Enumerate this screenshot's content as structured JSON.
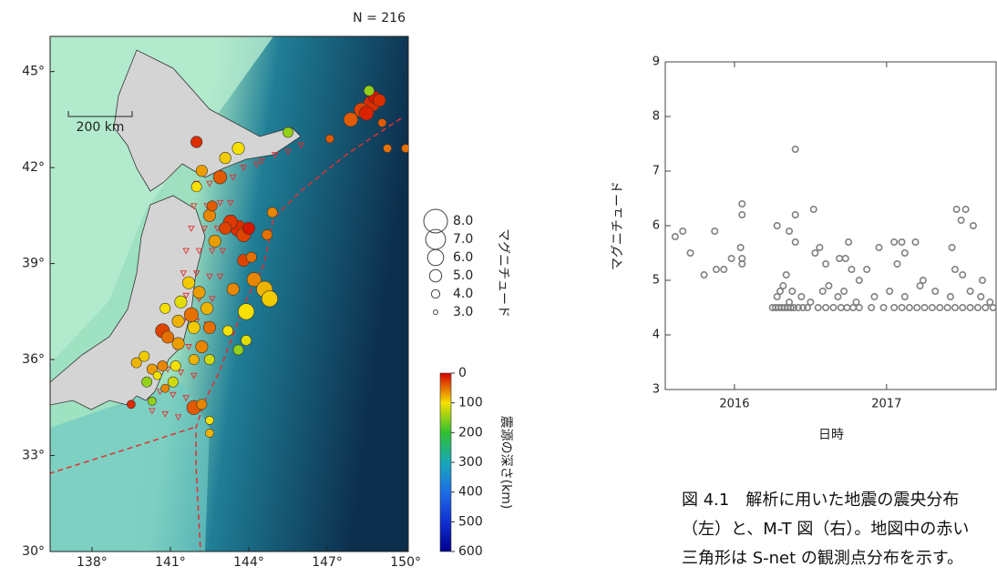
{
  "chart_data": [
    {
      "type": "map-scatter",
      "title": "N = 216",
      "scale_bar": "200 km",
      "xlim": [
        136.4,
        150.1
      ],
      "ylim": [
        30,
        46.1
      ],
      "xticks": [
        {
          "value": 138,
          "label": "138°"
        },
        {
          "value": 141,
          "label": "141°"
        },
        {
          "value": 144,
          "label": "144°"
        },
        {
          "value": 147,
          "label": "147°"
        },
        {
          "value": 150,
          "label": "150°"
        }
      ],
      "yticks": [
        {
          "value": 30,
          "label": "30°"
        },
        {
          "value": 33,
          "label": "33°"
        },
        {
          "value": 36,
          "label": "36°"
        },
        {
          "value": 39,
          "label": "39°"
        },
        {
          "value": 42,
          "label": "42°"
        },
        {
          "value": 45,
          "label": "45°"
        }
      ],
      "stations": {
        "color": "#e03030",
        "x": [
          142.0,
          142.5,
          143.0,
          143.4,
          141.9,
          142.4,
          142.9,
          143.3,
          141.8,
          142.3,
          142.8,
          143.2,
          141.6,
          142.1,
          142.6,
          143.0,
          141.5,
          142.0,
          142.5,
          142.9,
          141.6,
          142.1,
          142.6,
          141.5,
          142.0,
          142.4,
          141.2,
          141.7,
          142.2,
          140.9,
          141.4,
          141.9,
          140.6,
          141.1,
          141.6,
          140.3,
          140.8,
          141.3,
          144.5,
          145.0,
          145.5,
          146.0,
          143.8,
          144.3
        ],
        "y": [
          41.5,
          41.5,
          41.6,
          41.7,
          40.8,
          40.8,
          40.9,
          40.9,
          40.1,
          40.1,
          40.1,
          40.2,
          39.4,
          39.4,
          39.4,
          39.4,
          38.7,
          38.7,
          38.6,
          38.6,
          38.0,
          37.9,
          37.9,
          37.2,
          37.2,
          37.1,
          36.4,
          36.4,
          36.3,
          35.7,
          35.6,
          35.5,
          35.0,
          34.9,
          34.8,
          34.4,
          34.3,
          34.2,
          42.2,
          42.4,
          42.5,
          42.7,
          42.0,
          42.1
        ]
      },
      "events": {
        "x": [
          143.6,
          143.1,
          142.2,
          142.9,
          142.0,
          148.7,
          148.3,
          148.8,
          148.5,
          148.6,
          149.0,
          147.9,
          149.1,
          149.3,
          145.5,
          147.1,
          143.6,
          143.3,
          143.8,
          144.0,
          143.1,
          142.5,
          142.6,
          142.7,
          144.7,
          143.8,
          144.1,
          142.0,
          144.2,
          144.6,
          144.8,
          143.9,
          143.4,
          141.7,
          142.1,
          142.4,
          141.4,
          141.8,
          141.3,
          140.8,
          140.7,
          140.9,
          141.3,
          141.9,
          142.2,
          142.5,
          141.9,
          141.2,
          139.7,
          140.0,
          140.3,
          140.7,
          140.1,
          140.5,
          140.8,
          141.1,
          142.5,
          143.6,
          143.9,
          141.9,
          142.2,
          142.5,
          142.5,
          139.5,
          140.3,
          144.9,
          143.2,
          150.0
        ],
        "y": [
          42.6,
          42.3,
          41.9,
          41.7,
          42.8,
          44.0,
          43.8,
          44.2,
          43.7,
          44.4,
          44.1,
          43.5,
          43.4,
          42.6,
          43.1,
          42.9,
          40.1,
          40.3,
          39.9,
          40.1,
          40.1,
          40.5,
          40.8,
          39.7,
          39.9,
          39.1,
          39.2,
          41.4,
          38.5,
          38.2,
          37.9,
          37.5,
          38.2,
          38.4,
          38.1,
          37.6,
          37.8,
          37.4,
          37.2,
          37.6,
          36.9,
          36.7,
          36.5,
          37.0,
          36.4,
          37.0,
          36.0,
          35.8,
          35.9,
          36.1,
          35.7,
          35.8,
          35.3,
          35.5,
          35.1,
          35.3,
          36.0,
          36.3,
          36.6,
          34.5,
          34.6,
          34.1,
          33.7,
          34.6,
          34.7,
          40.6,
          36.9,
          42.6
        ],
        "sizes": [
          5.0,
          4.8,
          4.8,
          5.3,
          4.8,
          6.0,
          5.5,
          5.0,
          5.5,
          4.5,
          5.0,
          5.5,
          4.0,
          4.0,
          4.5,
          4.0,
          6.0,
          5.5,
          5.5,
          5.0,
          5.0,
          5.0,
          4.5,
          5.0,
          4.5,
          5.0,
          4.5,
          4.5,
          5.5,
          6.0,
          6.0,
          6.0,
          5.0,
          5.0,
          5.0,
          5.0,
          5.0,
          5.5,
          5.0,
          4.5,
          5.5,
          5.0,
          5.0,
          5.0,
          5.0,
          5.0,
          4.5,
          4.5,
          4.5,
          4.5,
          4.5,
          4.5,
          4.5,
          4.0,
          4.0,
          4.5,
          4.5,
          4.5,
          4.5,
          5.5,
          4.5,
          4.0,
          4.0,
          4.0,
          4.0,
          4.5,
          4.5,
          4.0
        ],
        "depths": [
          100,
          90,
          70,
          40,
          20,
          20,
          30,
          10,
          15,
          150,
          20,
          40,
          40,
          50,
          150,
          40,
          20,
          25,
          30,
          10,
          30,
          60,
          40,
          70,
          50,
          30,
          50,
          100,
          60,
          80,
          90,
          100,
          60,
          90,
          70,
          80,
          110,
          50,
          80,
          100,
          30,
          50,
          70,
          90,
          60,
          50,
          80,
          100,
          80,
          90,
          70,
          60,
          150,
          100,
          60,
          120,
          120,
          150,
          110,
          40,
          60,
          100,
          80,
          20,
          150,
          60,
          100,
          50
        ]
      },
      "size_legend": {
        "label": "マグニチュード",
        "values": [
          {
            "value": 8,
            "label": "8.0"
          },
          {
            "value": 7,
            "label": "7.0"
          },
          {
            "value": 6,
            "label": "6.0"
          },
          {
            "value": 5,
            "label": "5.0"
          },
          {
            "value": 4,
            "label": "4.0"
          },
          {
            "value": 3,
            "label": "3.0"
          }
        ]
      },
      "colorbar": {
        "label": "震源の深さ(km)",
        "ticks": [
          0,
          100,
          200,
          300,
          400,
          500,
          600
        ],
        "colors": [
          "#d40000",
          "#f5e000",
          "#30c030",
          "#18a8b8",
          "#1e6ee6",
          "#1030d0",
          "#00008c"
        ]
      }
    },
    {
      "type": "scatter",
      "x_label": "日時",
      "y_label": "マグニチュード",
      "color": "#808080",
      "xlim": [
        2015.545,
        2017.72
      ],
      "ylim": [
        3,
        9
      ],
      "xticks": [
        2016,
        2017
      ],
      "yticks": [
        3,
        4,
        5,
        6,
        7,
        8,
        9
      ],
      "x": [
        2015.61,
        2015.66,
        2015.71,
        2015.8,
        2015.87,
        2015.88,
        2015.93,
        2015.98,
        2016.04,
        2016.05,
        2016.05,
        2016.05,
        2016.05,
        2016.28,
        2016.36,
        2016.4,
        2016.4,
        2016.4,
        2016.52,
        2016.53,
        2016.56,
        2016.6,
        2016.69,
        2016.73,
        2016.75,
        2016.77,
        2016.82,
        2016.87,
        2016.95,
        2017.05,
        2017.07,
        2017.1,
        2017.12,
        2017.19,
        2017.24,
        2017.43,
        2017.46,
        2017.52,
        2017.49,
        2017.45,
        2017.5,
        2017.57,
        2017.63,
        2016.25,
        2016.27,
        2016.29,
        2016.31,
        2016.33,
        2016.35,
        2016.37,
        2016.39,
        2016.42,
        2016.45,
        2016.48,
        2016.55,
        2016.6,
        2016.65,
        2016.7,
        2016.74,
        2016.78,
        2016.82,
        2016.9,
        2016.98,
        2017.05,
        2017.1,
        2017.15,
        2017.2,
        2017.25,
        2017.3,
        2017.35,
        2017.4,
        2017.45,
        2017.5,
        2017.55,
        2017.6,
        2017.65,
        2017.7,
        2016.28,
        2016.3,
        2016.32,
        2016.34,
        2016.36,
        2016.38,
        2016.44,
        2016.5,
        2016.58,
        2016.62,
        2016.68,
        2016.72,
        2016.8,
        2016.92,
        2017.02,
        2017.12,
        2017.22,
        2017.32,
        2017.42,
        2017.55,
        2017.62,
        2017.68
      ],
      "y": [
        5.8,
        5.9,
        5.5,
        5.1,
        5.9,
        5.2,
        5.2,
        5.4,
        5.6,
        6.4,
        6.2,
        5.4,
        5.3,
        6.0,
        5.9,
        7.4,
        6.2,
        5.7,
        6.3,
        5.5,
        5.6,
        5.3,
        5.4,
        5.4,
        5.7,
        5.2,
        5.0,
        5.2,
        5.6,
        5.7,
        5.3,
        5.7,
        5.5,
        5.7,
        5.0,
        5.6,
        6.3,
        6.3,
        6.1,
        5.2,
        5.1,
        6.0,
        5.0,
        4.5,
        4.5,
        4.5,
        4.5,
        4.5,
        4.5,
        4.5,
        4.5,
        4.5,
        4.5,
        4.5,
        4.5,
        4.5,
        4.5,
        4.5,
        4.5,
        4.5,
        4.5,
        4.5,
        4.5,
        4.5,
        4.5,
        4.5,
        4.5,
        4.5,
        4.5,
        4.5,
        4.5,
        4.5,
        4.5,
        4.5,
        4.5,
        4.5,
        4.5,
        4.7,
        4.8,
        4.9,
        5.1,
        4.6,
        4.8,
        4.7,
        4.6,
        4.8,
        4.9,
        4.7,
        4.8,
        4.6,
        4.7,
        4.8,
        4.7,
        4.9,
        4.8,
        4.7,
        4.8,
        4.7,
        4.6
      ]
    }
  ],
  "caption": {
    "lines": [
      "図 4.1　解析に用いた地震の震央分布",
      "（左）と、M-T 図（右）。地図中の赤い",
      "三角形は S-net の観測点分布を示す。"
    ]
  }
}
